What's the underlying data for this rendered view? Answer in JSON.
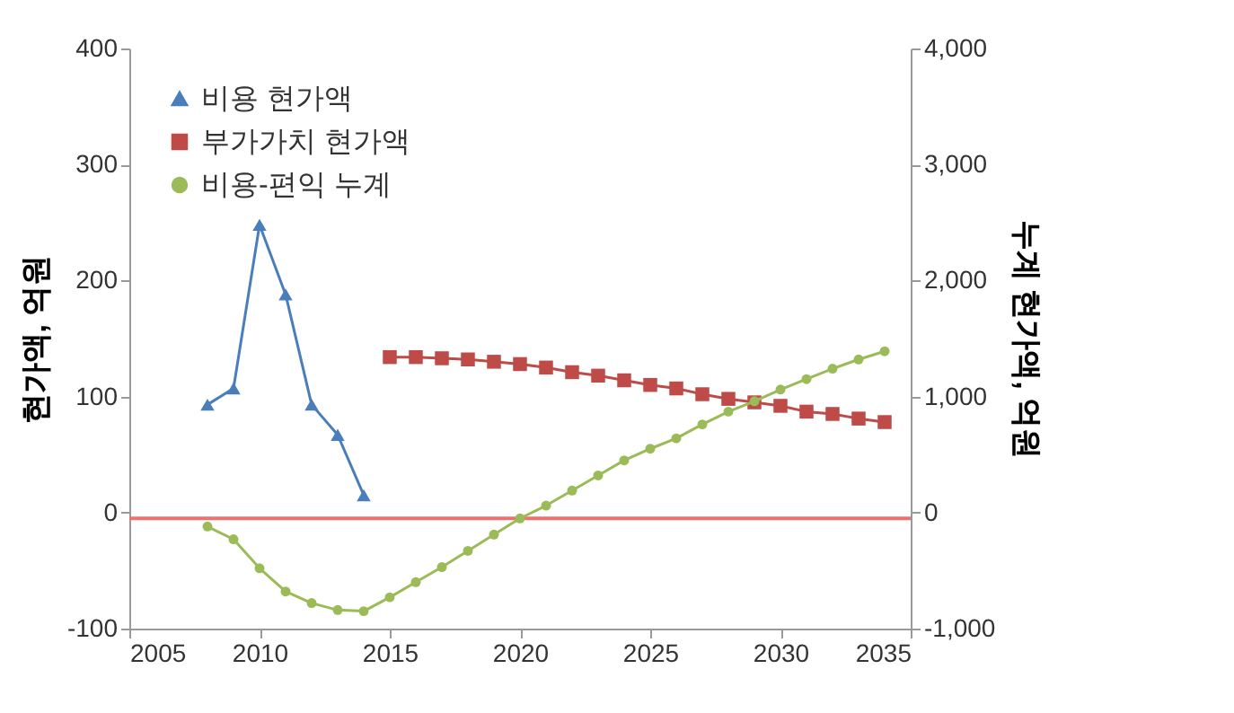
{
  "chart_data": {
    "type": "line",
    "ylabel": "현가액, 억원",
    "y2label": "누계 현가액, 억원",
    "xlim": [
      2005,
      2035
    ],
    "xticks": [
      2005,
      2010,
      2015,
      2020,
      2025,
      2030,
      2035
    ],
    "ylim": [
      -100,
      400
    ],
    "yticks": [
      -100,
      0,
      100,
      200,
      300,
      400
    ],
    "y2lim": [
      -1000,
      4000
    ],
    "y2ticks": [
      {
        "value": -1000,
        "label": "-1,000"
      },
      0,
      {
        "value": 1000,
        "label": "1,000"
      },
      {
        "value": 2000,
        "label": "2,000"
      },
      {
        "value": 3000,
        "label": "3,000"
      },
      {
        "value": 4000,
        "label": "4,000"
      }
    ],
    "legend": "top left",
    "grid": false,
    "ref_lines": [
      {
        "axis": "y",
        "value": -5,
        "color": "#f07070"
      }
    ],
    "series": [
      {
        "name": "비용 현가액",
        "color": "#4a7ebb",
        "marker": "triangle",
        "x": [
          2008,
          2009,
          2010,
          2011,
          2012,
          2013,
          2014
        ],
        "values": [
          93,
          107,
          248,
          188,
          93,
          67,
          15
        ]
      },
      {
        "name": "부가가치 현가액",
        "color": "#be4b48",
        "marker": "square",
        "x": [
          2015,
          2016,
          2017,
          2018,
          2019,
          2020,
          2021,
          2022,
          2023,
          2024,
          2025,
          2026,
          2027,
          2028,
          2029,
          2030,
          2031,
          2032,
          2033,
          2034
        ],
        "values": [
          134,
          134,
          133,
          132,
          130,
          128,
          125,
          121,
          118,
          114,
          110,
          107,
          102,
          98,
          95,
          92,
          87,
          85,
          81,
          78
        ]
      },
      {
        "name": "비용-편익 누계",
        "color": "#9bbb59",
        "marker": "circle",
        "axis": "y2",
        "x": [
          2008,
          2009,
          2010,
          2011,
          2012,
          2013,
          2014,
          2015,
          2016,
          2017,
          2018,
          2019,
          2020,
          2021,
          2022,
          2023,
          2024,
          2025,
          2026,
          2027,
          2028,
          2029,
          2030,
          2031,
          2032,
          2033,
          2034
        ],
        "values": [
          -120,
          -230,
          -480,
          -680,
          -780,
          -840,
          -850,
          -730,
          -600,
          -470,
          -330,
          -190,
          -50,
          60,
          190,
          320,
          450,
          550,
          640,
          760,
          870,
          960,
          1060,
          1150,
          1240,
          1320,
          1390
        ]
      }
    ]
  }
}
